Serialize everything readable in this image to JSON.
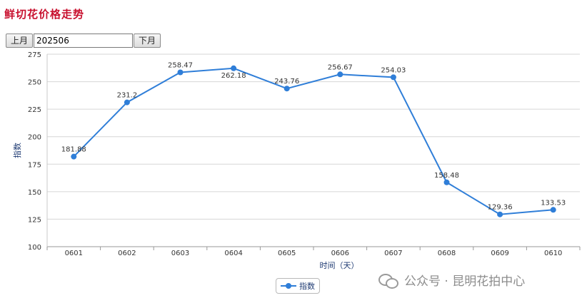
{
  "page": {
    "title": "鲜切花价格走势"
  },
  "toolbar": {
    "prev_label": "上月",
    "month_value": "202506",
    "next_label": "下月"
  },
  "legend": {
    "label": "指数",
    "color": "#2f7ed8"
  },
  "watermark": {
    "text": "公众号 · 昆明花拍中心",
    "icon": "wechat-icon"
  },
  "chart_data": {
    "type": "line",
    "categories": [
      "0601",
      "0602",
      "0603",
      "0604",
      "0605",
      "0606",
      "0607",
      "0608",
      "0609",
      "0610"
    ],
    "series": [
      {
        "name": "指数",
        "values": [
          181.88,
          231.2,
          258.47,
          262.18,
          243.76,
          256.67,
          254.03,
          158.48,
          129.36,
          133.53
        ],
        "color": "#2f7ed8"
      }
    ],
    "data_labels": [
      "181.88",
      "231.2",
      "258.47",
      "262.18",
      "243.76",
      "256.67",
      "254.03",
      "158.48",
      "129.36",
      "133.53"
    ],
    "xlabel": "时间（天）",
    "ylabel": "指数",
    "ylim": [
      100,
      275
    ],
    "yticks": [
      100,
      125,
      150,
      175,
      200,
      225,
      250,
      275
    ],
    "grid": true,
    "legend_position": "bottom-center"
  }
}
